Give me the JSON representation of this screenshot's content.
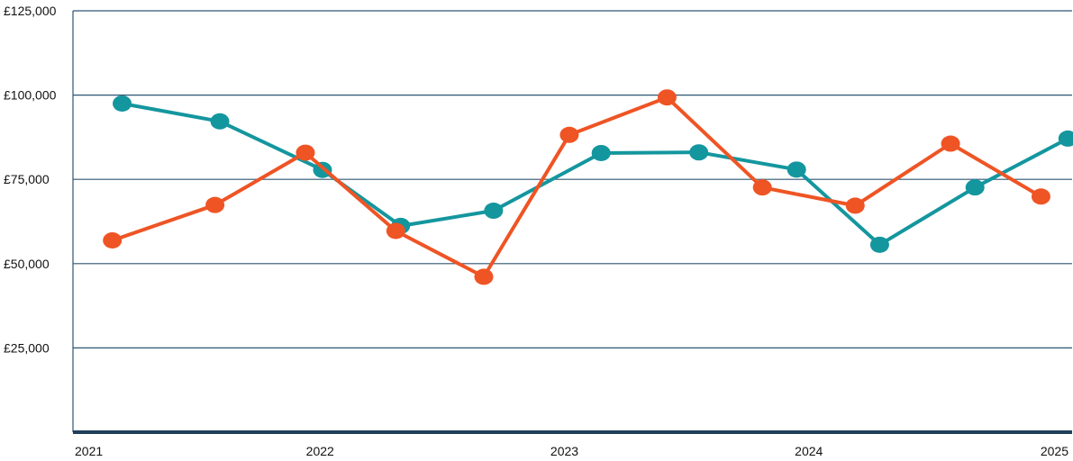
{
  "chart_data": {
    "type": "line",
    "title": "",
    "xlabel": "",
    "ylabel": "",
    "xlim": [
      2021,
      2025
    ],
    "ylim": [
      0,
      125000
    ],
    "grid": true,
    "legend": "none",
    "x_ticks": [
      {
        "value": 2021,
        "label": "2021"
      },
      {
        "value": 2022,
        "label": "2022"
      },
      {
        "value": 2023,
        "label": "2023"
      },
      {
        "value": 2024,
        "label": "2024"
      },
      {
        "value": 2025,
        "label": "2025"
      }
    ],
    "y_ticks": [
      {
        "value": 25000,
        "label": "£25,000"
      },
      {
        "value": 50000,
        "label": "£50,000"
      },
      {
        "value": 75000,
        "label": "£75,000"
      },
      {
        "value": 100000,
        "label": "£100,000"
      },
      {
        "value": 125000,
        "label": "£125,000"
      }
    ],
    "series": [
      {
        "color": "#14969e",
        "points": [
          {
            "x": 2021.19,
            "y": 97500
          },
          {
            "x": 2021.59,
            "y": 92200
          },
          {
            "x": 2022.01,
            "y": 77800
          },
          {
            "x": 2022.33,
            "y": 61200
          },
          {
            "x": 2022.71,
            "y": 65700
          },
          {
            "x": 2023.15,
            "y": 82800
          },
          {
            "x": 2023.55,
            "y": 83000
          },
          {
            "x": 2023.95,
            "y": 77900
          },
          {
            "x": 2024.29,
            "y": 55600
          },
          {
            "x": 2024.68,
            "y": 72600
          },
          {
            "x": 2025.06,
            "y": 87100
          }
        ]
      },
      {
        "color": "#ef5424",
        "points": [
          {
            "x": 2021.15,
            "y": 56900
          },
          {
            "x": 2021.57,
            "y": 67400
          },
          {
            "x": 2021.94,
            "y": 82900
          },
          {
            "x": 2022.31,
            "y": 59700
          },
          {
            "x": 2022.67,
            "y": 46100
          },
          {
            "x": 2023.02,
            "y": 88200
          },
          {
            "x": 2023.42,
            "y": 99300
          },
          {
            "x": 2023.81,
            "y": 72600
          },
          {
            "x": 2024.19,
            "y": 67200
          },
          {
            "x": 2024.58,
            "y": 85600
          },
          {
            "x": 2024.95,
            "y": 69900
          }
        ]
      }
    ],
    "colors": {
      "grid": "#2e5573",
      "axis": "#1f3f5a",
      "text": "#111111"
    }
  }
}
